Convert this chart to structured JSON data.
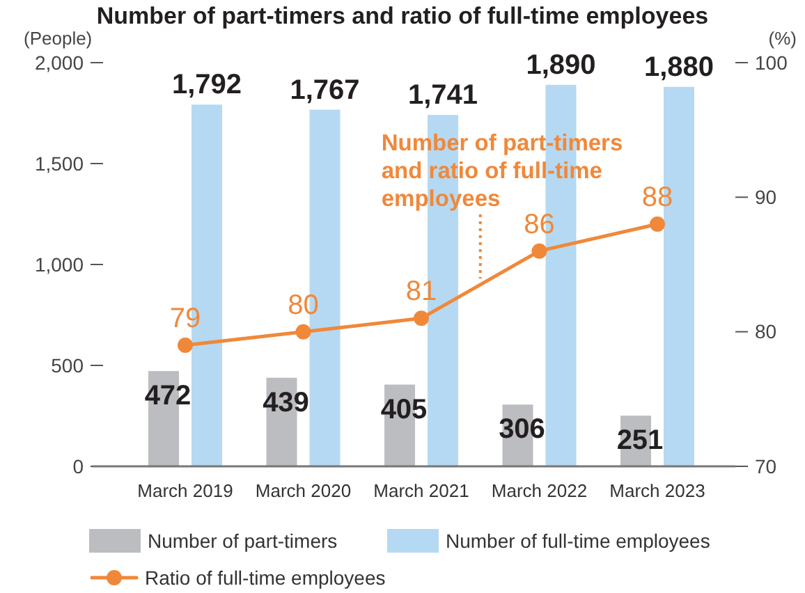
{
  "chart_data": {
    "type": "bar",
    "title": "Number of part-timers and ratio of full-time employees",
    "ylabel": "(People)",
    "y2label": "(%)",
    "categories": [
      "March 2019",
      "March 2020",
      "March 2021",
      "March 2022",
      "March 2023"
    ],
    "series": [
      {
        "name": "Number of part-timers",
        "color": "#bcbdc0",
        "values": [
          472,
          439,
          405,
          306,
          251
        ]
      },
      {
        "name": "Number of full-time employees",
        "color": "#b5d9f2",
        "values": [
          1792,
          1767,
          1741,
          1890,
          1880
        ],
        "value_labels": [
          "1,792",
          "1,767",
          "1,741",
          "1,890",
          "1,880"
        ]
      },
      {
        "name": "Ratio of full-time employees",
        "type": "line",
        "axis": "y2",
        "color": "#f0883a",
        "values": [
          79,
          80,
          81,
          86,
          88
        ]
      }
    ],
    "ylim": [
      0,
      2000
    ],
    "yticks": [
      0,
      500,
      {
        "value": 1000,
        "label": "1,000"
      },
      {
        "value": 1500,
        "label": "1,500"
      },
      {
        "value": 2000,
        "label": "2,000"
      }
    ],
    "y2lim": [
      70,
      100
    ],
    "y2ticks": [
      70,
      80,
      90,
      100
    ],
    "marker": "circle",
    "data_labels": true,
    "legend": "bottom",
    "annotations": [
      {
        "text": "Number of part-timers and ratio of full-time employees",
        "y": 930
      }
    ]
  }
}
